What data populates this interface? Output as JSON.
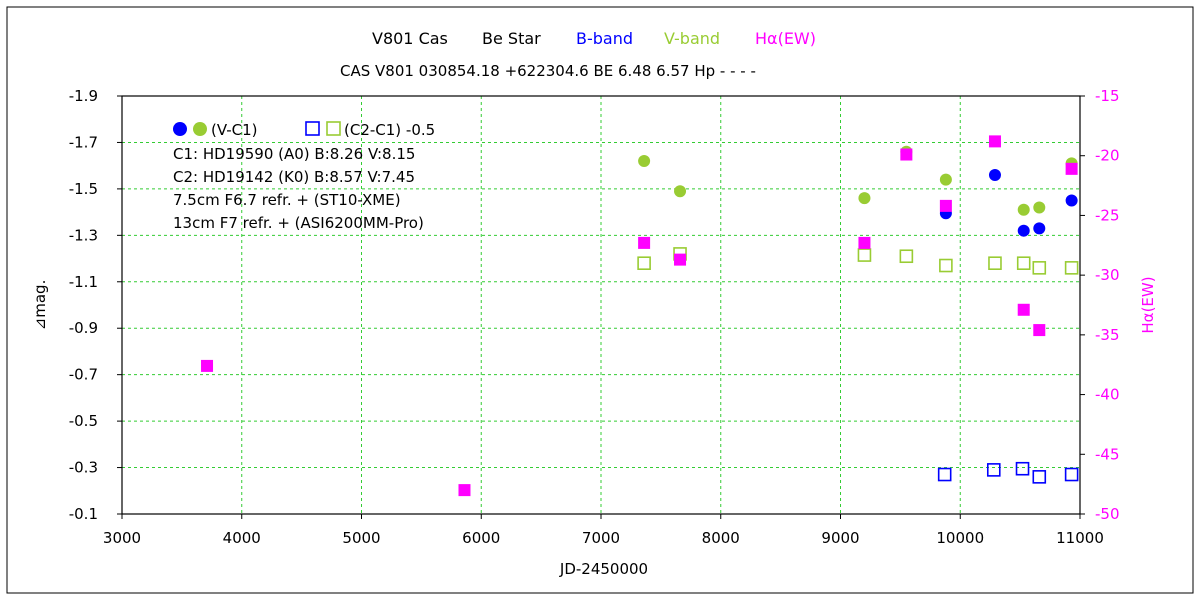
{
  "chart_data": {
    "type": "scatter",
    "title_line1": {
      "star": "V801 Cas",
      "class": "Be Star",
      "b": "B-band",
      "v": "V-band",
      "h": "Hα(EW)"
    },
    "title_line2": "CAS V801 030854.18 +622304.6 BE 6.48 6.57 Hp - - - -",
    "xlabel": "JD-2450000",
    "ylabel_left": "⊿mag.",
    "ylabel_right": "Hα(EW)",
    "xlim": [
      3000,
      11000
    ],
    "ylim_left": [
      -0.1,
      -1.9
    ],
    "ylim_right": [
      -50,
      -15
    ],
    "x_ticks": [
      3000,
      4000,
      5000,
      6000,
      7000,
      8000,
      9000,
      10000,
      11000
    ],
    "y_left_ticks": [
      -1.9,
      -1.7,
      -1.5,
      -1.3,
      -1.1,
      -0.9,
      -0.7,
      -0.5,
      -0.3,
      -0.1
    ],
    "y_right_ticks": [
      -15,
      -20,
      -25,
      -30,
      -35,
      -40,
      -45,
      -50
    ],
    "grid": true,
    "legend": {
      "filled_label": "(V-C1)",
      "open_label": "(C2-C1) -0.5",
      "lines": [
        "C1: HD19590 (A0)  B:8.26  V:8.15",
        "C2: HD19142 (K0)  B:8.57  V:7.45",
        "7.5cm F6.7 refr.   + (ST10-XME)",
        "13cm F7 refr.   + (ASI6200MM-Pro)"
      ]
    },
    "colors": {
      "b": "#0000ff",
      "v": "#99cc33",
      "h": "#ff00ff",
      "grid": "#33cc33"
    },
    "series": [
      {
        "band": "B",
        "marker": "filled-circle",
        "axis": "left",
        "color": "#0000ff",
        "x": [
          9880,
          10290,
          10530,
          10660,
          10930
        ],
        "y": [
          -1.395,
          -1.56,
          -1.32,
          -1.33,
          -1.45
        ]
      },
      {
        "band": "V",
        "marker": "filled-circle",
        "axis": "left",
        "color": "#99cc33",
        "x": [
          7360,
          7660,
          9200,
          9550,
          9880,
          10530,
          10660,
          10930
        ],
        "y": [
          -1.62,
          -1.49,
          -1.46,
          -1.66,
          -1.54,
          -1.41,
          -1.42,
          -1.61
        ]
      },
      {
        "band": "B",
        "marker": "open-square",
        "axis": "left",
        "color": "#0000ff",
        "x": [
          9870,
          10280,
          10520,
          10660,
          10930
        ],
        "y": [
          -0.27,
          -0.29,
          -0.295,
          -0.26,
          -0.27
        ]
      },
      {
        "band": "V",
        "marker": "open-square",
        "axis": "left",
        "color": "#99cc33",
        "x": [
          7360,
          7660,
          9200,
          9550,
          9880,
          10290,
          10530,
          10660,
          10930
        ],
        "y": [
          -1.18,
          -1.22,
          -1.215,
          -1.21,
          -1.17,
          -1.18,
          -1.18,
          -1.16,
          -1.16
        ]
      },
      {
        "band": "Hα",
        "marker": "filled-square",
        "axis": "right",
        "color": "#ff00ff",
        "x": [
          3710,
          5860,
          7360,
          7660,
          9200,
          9550,
          9880,
          10290,
          10530,
          10660,
          10930
        ],
        "y": [
          -37.6,
          -48.0,
          -27.3,
          -28.7,
          -27.3,
          -19.9,
          -24.2,
          -18.8,
          -32.9,
          -34.6,
          -21.1
        ]
      }
    ]
  }
}
